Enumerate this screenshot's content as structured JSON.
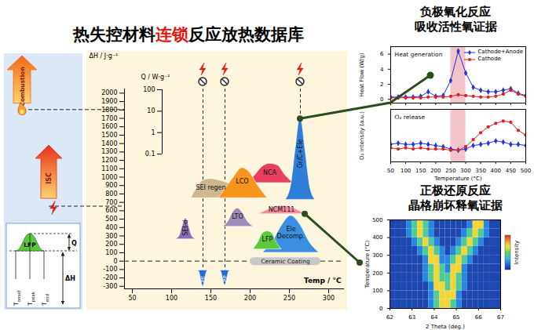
{
  "title": {
    "parts": [
      {
        "text": "热失控材料",
        "color": "#000000"
      },
      {
        "text": "连锁",
        "color": "#e3120b"
      },
      {
        "text": "反应放热数据库",
        "color": "#000000"
      }
    ]
  },
  "left_panel": {
    "arrows": [
      {
        "label": "Combustion",
        "level": 1800,
        "color": "#f26a1b"
      },
      {
        "label": "ISC",
        "level": 650,
        "color": "#e5321d"
      }
    ],
    "schematic": {
      "peak_label": "LFP",
      "color": "#5cc83c",
      "height_label": "Q",
      "area_label": "ΔH",
      "temperatures": [
        {
          "text": "T",
          "sub": "onset"
        },
        {
          "text": "T",
          "sub": "peak"
        },
        {
          "text": "T",
          "sub": "end"
        }
      ]
    }
  },
  "headings": [
    [
      "负极氧化反应",
      "吸收活性氧证据"
    ],
    [
      "正极还原反应",
      "晶格崩坏释氧证据"
    ]
  ],
  "chart_data": [
    {
      "type": "area",
      "xlabel": "Temp / °C",
      "ylabel": "ΔH / J·g⁻¹",
      "xlim": [
        40,
        320
      ],
      "xticks": [
        50,
        100,
        150,
        200,
        250,
        300
      ],
      "ylim": [
        -330,
        2050
      ],
      "yticks": [
        -300,
        -200,
        -100,
        0,
        100,
        200,
        300,
        400,
        500,
        600,
        700,
        800,
        900,
        1000,
        1100,
        1200,
        1300,
        1400,
        1500,
        1600,
        1700,
        1800,
        1900,
        2000
      ],
      "baseline": 0,
      "band": {
        "label": "Ceramic Coating",
        "x": [
          205,
          285
        ],
        "value": 0,
        "color": "#c8c8c8"
      },
      "series": [
        {
          "name": "NCA",
          "color": "#e8405e",
          "base": 930,
          "x": [
            195,
            205,
            215,
            225,
            235,
            245,
            255
          ],
          "values": [
            930,
            1010,
            1120,
            1160,
            1140,
            1020,
            930
          ]
        },
        {
          "name": "SEI regen",
          "color": "#cdb88e",
          "base": 750,
          "x": [
            125,
            132,
            140,
            150,
            165,
            185,
            200
          ],
          "values": [
            750,
            870,
            960,
            980,
            950,
            870,
            750
          ]
        },
        {
          "name": "LCO",
          "color": "#f7941d",
          "base": 750,
          "x": [
            160,
            170,
            180,
            190,
            200,
            210,
            222
          ],
          "values": [
            750,
            880,
            1010,
            1110,
            1050,
            900,
            750
          ]
        },
        {
          "name": "NCM111",
          "color": "#f58ca0",
          "base": 560,
          "x": [
            210,
            220,
            230,
            240,
            250,
            260,
            270
          ],
          "values": [
            560,
            600,
            640,
            660,
            650,
            610,
            560
          ]
        },
        {
          "name": "LTO",
          "color": "#a08cb8",
          "base": 410,
          "x": [
            165,
            172,
            178,
            184,
            190,
            197,
            205
          ],
          "values": [
            410,
            470,
            580,
            630,
            580,
            470,
            410
          ]
        },
        {
          "name": "SEI-d",
          "color": "#8c6cb4",
          "base": 260,
          "x": [
            105,
            110,
            114,
            118,
            122,
            126,
            131
          ],
          "values": [
            260,
            300,
            420,
            510,
            420,
            300,
            260
          ]
        },
        {
          "name": "Ele\nDecomp.",
          "color": "#3b8fe0",
          "base": 100,
          "x": [
            216,
            228,
            240,
            252,
            264,
            276,
            288
          ],
          "values": [
            100,
            220,
            420,
            540,
            430,
            220,
            100
          ]
        },
        {
          "name": "LFP",
          "color": "#5cc83c",
          "base": 140,
          "x": [
            204,
            210,
            216,
            222,
            228,
            234,
            240
          ],
          "values": [
            140,
            220,
            330,
            355,
            330,
            220,
            140
          ]
        },
        {
          "name": "Gr/C+Ele",
          "color": "#2f7fd8",
          "base": 730,
          "marker": "prohibited",
          "x": [
            245,
            252,
            258,
            264,
            270,
            276,
            283
          ],
          "values": [
            730,
            900,
            1350,
            1730,
            1350,
            900,
            730
          ]
        },
        {
          "name": "PE",
          "color": "#1f6fd0",
          "base": -110,
          "marker": "prohibited",
          "x": [
            134,
            136,
            138,
            140,
            142,
            144,
            146
          ],
          "values": [
            -110,
            -150,
            -250,
            -300,
            -250,
            -150,
            -110
          ]
        },
        {
          "name": "PP",
          "color": "#1f6fd0",
          "base": -110,
          "marker": "prohibited",
          "x": [
            162,
            164,
            166,
            168,
            170,
            172,
            174
          ],
          "values": [
            -110,
            -150,
            -240,
            -290,
            -240,
            -150,
            -110
          ]
        }
      ]
    },
    {
      "type": "axis",
      "ylabel": "Q / W·g⁻¹",
      "log": true,
      "ylim": [
        0.1,
        100
      ],
      "yticks": [
        0.1,
        1,
        10,
        100
      ]
    },
    {
      "type": "line",
      "ylabel": "Heat Flow (W/g)",
      "annotation": "Heat generation",
      "x": [
        50,
        75,
        100,
        125,
        150,
        175,
        200,
        225,
        250,
        275,
        300,
        325,
        350,
        375,
        400,
        425,
        450,
        475,
        500
      ],
      "series": [
        {
          "name": "Cathode+Anode",
          "color": "#2233dd",
          "marker": "diamond",
          "values": [
            0.3,
            0.3,
            0.3,
            0.3,
            0.4,
            1.0,
            0.4,
            0.5,
            2.5,
            6.4,
            3.5,
            1.6,
            1.2,
            1.0,
            1.0,
            1.2,
            1.4,
            0.8,
            0.5
          ]
        },
        {
          "name": "Cathode",
          "color": "#e02020",
          "marker": "circle",
          "values": [
            0.2,
            0.2,
            0.2,
            0.2,
            0.2,
            0.3,
            0.3,
            0.3,
            0.4,
            0.6,
            0.5,
            0.4,
            0.3,
            0.3,
            0.4,
            0.7,
            1.2,
            0.7,
            0.4
          ]
        }
      ],
      "xlim": [
        50,
        500
      ],
      "xticks": [
        50,
        100,
        150,
        200,
        250,
        300,
        350,
        400,
        450,
        500
      ],
      "ylim": [
        -0.5,
        7
      ],
      "yticks": [
        0,
        2,
        4,
        6
      ],
      "tick_labels": "y",
      "legend": "top-right",
      "highlight_x": [
        250,
        300
      ]
    },
    {
      "type": "line",
      "ylabel": "O₂ intensity (a.u.)",
      "xlabel": "Temperature (°C)",
      "annotation": "O₂ release",
      "x": [
        50,
        75,
        100,
        125,
        150,
        175,
        200,
        225,
        250,
        275,
        300,
        325,
        350,
        375,
        400,
        425,
        450,
        475,
        500
      ],
      "series": [
        {
          "name": "Cathode+Anode",
          "color": "#2233dd",
          "marker": "diamond",
          "values": [
            3.0,
            3.1,
            3.0,
            3.0,
            3.1,
            3.0,
            2.9,
            2.8,
            2.6,
            2.5,
            2.6,
            2.9,
            3.0,
            3.1,
            3.3,
            3.2,
            3.0,
            3.0,
            2.9
          ]
        },
        {
          "name": "Cathode",
          "color": "#e02020",
          "marker": "circle",
          "values": [
            2.7,
            2.6,
            2.7,
            2.6,
            2.7,
            2.6,
            2.6,
            2.6,
            2.5,
            2.5,
            2.8,
            3.4,
            4.0,
            4.5,
            4.8,
            5.0,
            4.9,
            4.2,
            3.8
          ]
        }
      ],
      "xlim": [
        50,
        500
      ],
      "xticks": [
        50,
        100,
        150,
        200,
        250,
        300,
        350,
        400,
        450,
        500
      ],
      "ylim": [
        1.5,
        6
      ],
      "tick_labels": "x",
      "highlight_x": [
        250,
        300
      ]
    },
    {
      "type": "heatmap",
      "xlabel": "2 Theta (deg.)",
      "ylabel": "Temperature (°C)",
      "x_bins": [
        62,
        62.25,
        62.5,
        62.75,
        63,
        63.25,
        63.5,
        63.75,
        64,
        64.25,
        64.5,
        64.75,
        65,
        65.25,
        65.5,
        65.75,
        66,
        66.25,
        66.5,
        66.75,
        67
      ],
      "y_bins": [
        0,
        50,
        100,
        150,
        200,
        250,
        300,
        350,
        400,
        450,
        500
      ],
      "z": [
        [
          1,
          1,
          1,
          1,
          1,
          1,
          1,
          3,
          6,
          10,
          10,
          6,
          3,
          1,
          1,
          1,
          1,
          1,
          1,
          1
        ],
        [
          1,
          1,
          1,
          1,
          1,
          1,
          1,
          3,
          6,
          10,
          10,
          10,
          3,
          1,
          1,
          1,
          1,
          1,
          1,
          1
        ],
        [
          1,
          1,
          1,
          1,
          1,
          1,
          1,
          3,
          10,
          10,
          6,
          10,
          6,
          3,
          1,
          1,
          1,
          1,
          1,
          1
        ],
        [
          1,
          1,
          1,
          1,
          1,
          1,
          3,
          6,
          10,
          6,
          6,
          10,
          6,
          3,
          1,
          1,
          1,
          1,
          1,
          1
        ],
        [
          1,
          1,
          1,
          1,
          1,
          1,
          3,
          6,
          10,
          6,
          3,
          10,
          10,
          3,
          1,
          1,
          1,
          1,
          1,
          1
        ],
        [
          1,
          1,
          1,
          1,
          1,
          1,
          3,
          10,
          10,
          3,
          3,
          6,
          10,
          6,
          3,
          1,
          1,
          1,
          1,
          1
        ],
        [
          1,
          1,
          1,
          1,
          1,
          3,
          6,
          10,
          6,
          3,
          1,
          3,
          6,
          10,
          6,
          3,
          1,
          1,
          1,
          1
        ],
        [
          1,
          1,
          1,
          1,
          3,
          6,
          10,
          6,
          3,
          1,
          1,
          1,
          3,
          6,
          10,
          6,
          3,
          1,
          1,
          1
        ],
        [
          1,
          1,
          1,
          3,
          6,
          10,
          6,
          3,
          1,
          1,
          1,
          1,
          1,
          3,
          6,
          10,
          6,
          3,
          1,
          1
        ],
        [
          1,
          1,
          1,
          3,
          6,
          10,
          6,
          3,
          1,
          1,
          1,
          1,
          1,
          1,
          3,
          10,
          10,
          3,
          1,
          1
        ]
      ],
      "xlim": [
        62,
        67
      ],
      "xticks": [
        62,
        63,
        64,
        65,
        66,
        67
      ],
      "ylim": [
        0,
        500
      ],
      "yticks": [
        0,
        100,
        200,
        300,
        400,
        500
      ],
      "colorbar": {
        "label": "Intensity",
        "range": [
          0,
          14
        ]
      }
    }
  ]
}
